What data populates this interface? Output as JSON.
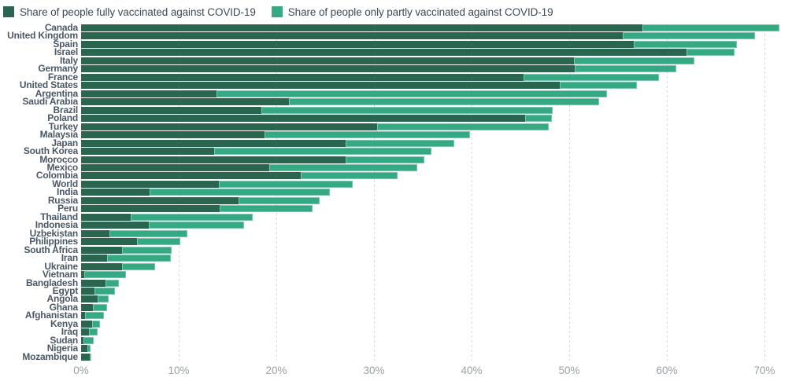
{
  "legend": {
    "items": [
      {
        "label": "Share of people fully vaccinated against COVID-19",
        "color": "#2a6550"
      },
      {
        "label": "Share of people only partly vaccinated against COVID-19",
        "color": "#35a983"
      }
    ]
  },
  "axis": {
    "ticks": [
      "0%",
      "10%",
      "20%",
      "30%",
      "40%",
      "50%",
      "60%",
      "70%"
    ],
    "min": 0,
    "max": 70,
    "unit": "%"
  },
  "colors": {
    "fully": "#2a6550",
    "partly": "#35a983",
    "country_label": "#4a5866",
    "axis_label": "#9aa0a4",
    "background": "#ffffff"
  },
  "chart_data": {
    "type": "bar",
    "orientation": "horizontal",
    "stacked": true,
    "grid": "vertical-dashed",
    "legend_position": "top",
    "xlim": [
      0,
      70
    ],
    "x_tick_step": 10,
    "categories": [
      "Canada",
      "United Kingdom",
      "Spain",
      "Israel",
      "Italy",
      "Germany",
      "France",
      "United States",
      "Argentina",
      "Saudi Arabia",
      "Brazil",
      "Poland",
      "Turkey",
      "Malaysia",
      "Japan",
      "South Korea",
      "Morocco",
      "Mexico",
      "Colombia",
      "World",
      "India",
      "Russia",
      "Peru",
      "Thailand",
      "Indonesia",
      "Uzbekistan",
      "Philippines",
      "South Africa",
      "Iran",
      "Ukraine",
      "Vietnam",
      "Bangladesh",
      "Egypt",
      "Angola",
      "Ghana",
      "Afghanistan",
      "Kenya",
      "Iraq",
      "Sudan",
      "Nigeria",
      "Mozambique"
    ],
    "series": [
      {
        "name": "Share of people fully vaccinated against COVID-19",
        "color": "#2a6550",
        "values": [
          57.5,
          55.5,
          56.6,
          62.0,
          50.5,
          50.6,
          45.3,
          49.0,
          13.9,
          21.3,
          18.5,
          45.5,
          30.3,
          18.8,
          27.1,
          13.6,
          27.1,
          19.3,
          22.5,
          14.1,
          7.0,
          16.1,
          14.2,
          5.1,
          6.9,
          2.9,
          5.7,
          4.2,
          2.7,
          4.2,
          0.3,
          2.5,
          1.4,
          1.7,
          1.2,
          0.4,
          1.1,
          0.8,
          0.25,
          0.65,
          0.85
        ]
      },
      {
        "name": "Share of people only partly vaccinated against COVID-19",
        "color": "#35a983",
        "values": [
          14.0,
          13.5,
          10.6,
          4.9,
          12.3,
          10.4,
          13.9,
          7.9,
          40.0,
          31.8,
          29.8,
          2.7,
          17.6,
          21.0,
          11.1,
          22.3,
          8.1,
          15.1,
          9.9,
          13.7,
          18.5,
          8.3,
          9.5,
          12.5,
          9.8,
          8.0,
          4.5,
          5.1,
          6.5,
          3.4,
          4.3,
          1.4,
          2.1,
          1.1,
          1.5,
          1.9,
          0.8,
          0.9,
          1.05,
          0.35,
          0.2
        ]
      }
    ]
  }
}
